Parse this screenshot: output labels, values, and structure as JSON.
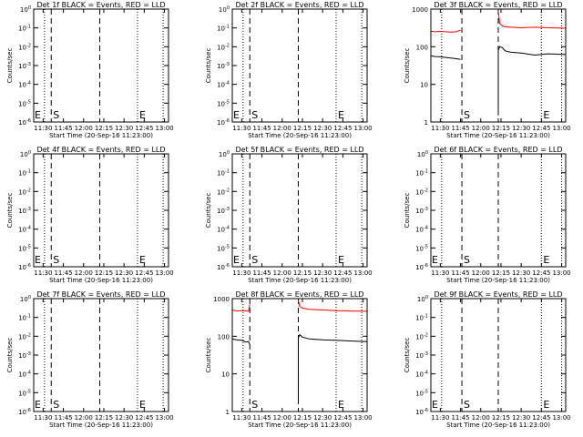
{
  "figure": {
    "background": "#ffffff",
    "colors": {
      "events": "#000000",
      "lld": "#ff0000",
      "axes": "#000000"
    }
  },
  "chart_data": [
    {
      "type": "line",
      "title": "Det 1f BLACK = Events, RED = LLD",
      "xlabel": "Start Time (20-Sep-16 11:23:00)",
      "ylabel": "Counts/sec",
      "xlim": [
        "11:23",
        "13:03"
      ],
      "x_ticks": [
        "11:30",
        "11:45",
        "12:00",
        "12:15",
        "12:30",
        "12:45",
        "13:00"
      ],
      "yscale": "log",
      "ylim": [
        1,
        1e-06
      ],
      "y_ticks": [
        "10^-6",
        "10^-5",
        "10^-4",
        "10^-3",
        "10^-2",
        "10^-1",
        "10^0"
      ],
      "y_ticks_reversed": true,
      "vlines": [
        {
          "x": "11:31",
          "style": "dotted",
          "label": ""
        },
        {
          "x": "11:36",
          "style": "dashed",
          "label": "S"
        },
        {
          "x": "12:12",
          "style": "dashed",
          "label": ""
        },
        {
          "x": "12:40",
          "style": "dotted",
          "label": "E"
        },
        {
          "x": "12:59",
          "style": "dotted",
          "label": ""
        }
      ],
      "corner_label": "E",
      "series": []
    },
    {
      "type": "line",
      "title": "Det 2f BLACK = Events, RED = LLD",
      "xlabel": "Start Time (20-Sep-16 11:23:00)",
      "ylabel": "Counts/sec",
      "xlim": [
        "11:23",
        "13:03"
      ],
      "x_ticks": [
        "11:30",
        "11:45",
        "12:00",
        "12:15",
        "12:30",
        "12:45",
        "13:00"
      ],
      "yscale": "log",
      "ylim": [
        1,
        1e-06
      ],
      "y_ticks": [
        "10^-6",
        "10^-5",
        "10^-4",
        "10^-3",
        "10^-2",
        "10^-1",
        "10^0"
      ],
      "y_ticks_reversed": true,
      "vlines": [
        {
          "x": "11:31",
          "style": "dotted",
          "label": ""
        },
        {
          "x": "11:36",
          "style": "dashed",
          "label": "S"
        },
        {
          "x": "12:12",
          "style": "dashed",
          "label": ""
        },
        {
          "x": "12:40",
          "style": "dotted",
          "label": "E"
        },
        {
          "x": "12:59",
          "style": "dotted",
          "label": ""
        }
      ],
      "corner_label": "E",
      "series": []
    },
    {
      "type": "line",
      "title": "Det 3f BLACK = Events, RED = LLD",
      "xlabel": "Start Time (20-Sep-16 11:23:00)",
      "ylabel": "Counts/sec",
      "xlim": [
        "11:23",
        "13:03"
      ],
      "x_ticks": [
        "11:30",
        "11:45",
        "12:00",
        "12:15",
        "12:30",
        "12:45",
        "13:00"
      ],
      "yscale": "log",
      "ylim": [
        1,
        1000
      ],
      "y_ticks": [
        "1",
        "10",
        "100",
        "1000"
      ],
      "y_ticks_reversed": false,
      "vlines": [
        {
          "x": "11:31",
          "style": "dotted",
          "label": ""
        },
        {
          "x": "11:46",
          "style": "dashed",
          "label": "S"
        },
        {
          "x": "12:13",
          "style": "dashed",
          "label": ""
        },
        {
          "x": "12:45",
          "style": "dotted",
          "label": "E"
        },
        {
          "x": "13:00",
          "style": "dotted",
          "label": ""
        }
      ],
      "corner_label": "",
      "series": [
        {
          "color": "#ff0000",
          "role": "lld",
          "segments": [
            {
              "x": [
                "11:23",
                "11:26",
                "11:30",
                "11:34",
                "11:38",
                "11:42",
                "11:45"
              ],
              "y": [
                260,
                250,
                255,
                250,
                245,
                250,
                280
              ]
            },
            {
              "x": [
                "12:13",
                "12:14",
                "12:16",
                "12:18",
                "12:22",
                "12:30",
                "12:40",
                "12:50",
                "13:03"
              ],
              "y": [
                900,
                420,
                360,
                340,
                330,
                320,
                330,
                320,
                310
              ]
            }
          ]
        },
        {
          "color": "#000000",
          "role": "events",
          "segments": [
            {
              "x": [
                "11:23",
                "11:26",
                "11:30",
                "11:34",
                "11:38",
                "11:42",
                "11:45"
              ],
              "y": [
                58,
                55,
                54,
                52,
                50,
                48,
                46
              ]
            },
            {
              "x": [
                "12:13",
                "12:13",
                "12:14",
                "12:16",
                "12:18",
                "12:22",
                "12:30",
                "12:40",
                "12:50",
                "13:03"
              ],
              "y": [
                1.5,
                80,
                100,
                95,
                78,
                72,
                68,
                60,
                65,
                62
              ]
            }
          ]
        }
      ]
    },
    {
      "type": "line",
      "title": "Det 4f BLACK = Events, RED = LLD",
      "xlabel": "Start Time (20-Sep-16 11:23:00)",
      "ylabel": "Counts/sec",
      "xlim": [
        "11:23",
        "13:03"
      ],
      "x_ticks": [
        "11:30",
        "11:45",
        "12:00",
        "12:15",
        "12:30",
        "12:45",
        "13:00"
      ],
      "yscale": "log",
      "ylim": [
        1,
        1e-06
      ],
      "y_ticks": [
        "10^-6",
        "10^-5",
        "10^-4",
        "10^-3",
        "10^-2",
        "10^-1",
        "10^0"
      ],
      "y_ticks_reversed": true,
      "vlines": [
        {
          "x": "11:31",
          "style": "dotted",
          "label": ""
        },
        {
          "x": "11:36",
          "style": "dashed",
          "label": "S"
        },
        {
          "x": "12:12",
          "style": "dashed",
          "label": ""
        },
        {
          "x": "12:40",
          "style": "dotted",
          "label": "E"
        },
        {
          "x": "12:59",
          "style": "dotted",
          "label": ""
        }
      ],
      "corner_label": "E",
      "series": []
    },
    {
      "type": "line",
      "title": "Det 5f BLACK = Events, RED = LLD",
      "xlabel": "Start Time (20-Sep-16 11:23:00)",
      "ylabel": "Counts/sec",
      "xlim": [
        "11:23",
        "13:03"
      ],
      "x_ticks": [
        "11:30",
        "11:45",
        "12:00",
        "12:15",
        "12:30",
        "12:45",
        "13:00"
      ],
      "yscale": "log",
      "ylim": [
        1,
        1e-06
      ],
      "y_ticks": [
        "10^-6",
        "10^-5",
        "10^-4",
        "10^-3",
        "10^-2",
        "10^-1",
        "10^0"
      ],
      "y_ticks_reversed": true,
      "vlines": [
        {
          "x": "11:31",
          "style": "dotted",
          "label": ""
        },
        {
          "x": "11:36",
          "style": "dashed",
          "label": "S"
        },
        {
          "x": "12:12",
          "style": "dashed",
          "label": ""
        },
        {
          "x": "12:40",
          "style": "dotted",
          "label": "E"
        },
        {
          "x": "12:59",
          "style": "dotted",
          "label": ""
        }
      ],
      "corner_label": "E",
      "series": []
    },
    {
      "type": "line",
      "title": "Det 6f BLACK = Events, RED = LLD",
      "xlabel": "Start Time (20-Sep-16 11:23:00)",
      "ylabel": "Counts/sec",
      "xlim": [
        "11:23",
        "13:03"
      ],
      "x_ticks": [
        "11:30",
        "11:45",
        "12:00",
        "12:15",
        "12:30",
        "12:45",
        "13:00"
      ],
      "yscale": "log",
      "ylim": [
        1,
        1e-06
      ],
      "y_ticks": [
        "10^-6",
        "10^-5",
        "10^-4",
        "10^-3",
        "10^-2",
        "10^-1",
        "10^0"
      ],
      "y_ticks_reversed": true,
      "vlines": [
        {
          "x": "11:31",
          "style": "dotted",
          "label": ""
        },
        {
          "x": "11:46",
          "style": "dashed",
          "label": "S"
        },
        {
          "x": "12:13",
          "style": "dashed",
          "label": ""
        },
        {
          "x": "12:45",
          "style": "dotted",
          "label": "E"
        },
        {
          "x": "13:00",
          "style": "dotted",
          "label": ""
        }
      ],
      "corner_label": "E",
      "series": []
    },
    {
      "type": "line",
      "title": "Det 7f BLACK = Events, RED = LLD",
      "xlabel": "Start Time (20-Sep-16 11:23:00)",
      "ylabel": "Counts/sec",
      "xlim": [
        "11:23",
        "13:03"
      ],
      "x_ticks": [
        "11:30",
        "11:45",
        "12:00",
        "12:15",
        "12:30",
        "12:45",
        "13:00"
      ],
      "yscale": "log",
      "ylim": [
        1,
        1e-06
      ],
      "y_ticks": [
        "10^-6",
        "10^-5",
        "10^-4",
        "10^-3",
        "10^-2",
        "10^-1",
        "10^0"
      ],
      "y_ticks_reversed": true,
      "vlines": [
        {
          "x": "11:31",
          "style": "dotted",
          "label": ""
        },
        {
          "x": "11:36",
          "style": "dashed",
          "label": "S"
        },
        {
          "x": "12:12",
          "style": "dashed",
          "label": ""
        },
        {
          "x": "12:40",
          "style": "dotted",
          "label": "E"
        },
        {
          "x": "12:59",
          "style": "dotted",
          "label": ""
        }
      ],
      "corner_label": "E",
      "series": []
    },
    {
      "type": "line",
      "title": "Det 8f BLACK = Events, RED = LLD",
      "xlabel": "Start Time (20-Sep-16 11:23:00)",
      "ylabel": "Counts/sec",
      "xlim": [
        "11:23",
        "13:03"
      ],
      "x_ticks": [
        "11:30",
        "11:45",
        "12:00",
        "12:15",
        "12:30",
        "12:45",
        "13:00"
      ],
      "yscale": "log",
      "ylim": [
        1,
        1000
      ],
      "y_ticks": [
        "1",
        "10",
        "100",
        "1000"
      ],
      "y_ticks_reversed": false,
      "vlines": [
        {
          "x": "11:31",
          "style": "dotted",
          "label": ""
        },
        {
          "x": "11:36",
          "style": "dashed",
          "label": "S"
        },
        {
          "x": "12:12",
          "style": "dashed",
          "label": ""
        },
        {
          "x": "12:40",
          "style": "dotted",
          "label": "E"
        },
        {
          "x": "12:59",
          "style": "dotted",
          "label": ""
        }
      ],
      "corner_label": "",
      "series": [
        {
          "color": "#ff0000",
          "role": "lld",
          "segments": [
            {
              "x": [
                "11:23",
                "11:26",
                "11:30",
                "11:34",
                "11:35",
                "11:36"
              ],
              "y": [
                500,
                470,
                480,
                470,
                460,
                700
              ]
            },
            {
              "x": [
                "12:12",
                "12:13",
                "12:15",
                "12:20",
                "12:30",
                "12:40",
                "12:50",
                "13:03"
              ],
              "y": [
                900,
                620,
                560,
                520,
                500,
                480,
                470,
                460
              ]
            }
          ]
        },
        {
          "color": "#000000",
          "role": "events",
          "segments": [
            {
              "x": [
                "11:23",
                "11:26",
                "11:30",
                "11:33",
                "11:35",
                "11:36"
              ],
              "y": [
                85,
                80,
                78,
                70,
                72,
                60
              ]
            },
            {
              "x": [
                "12:12",
                "12:12",
                "12:13",
                "12:15",
                "12:20",
                "12:30",
                "12:40",
                "12:50",
                "13:03"
              ],
              "y": [
                2,
                90,
                110,
                95,
                85,
                80,
                78,
                75,
                72
              ]
            }
          ]
        }
      ]
    },
    {
      "type": "line",
      "title": "Det 9f BLACK = Events, RED = LLD",
      "xlabel": "Start Time (20-Sep-16 11:23:00)",
      "ylabel": "Counts/sec",
      "xlim": [
        "11:23",
        "13:03"
      ],
      "x_ticks": [
        "11:30",
        "11:45",
        "12:00",
        "12:15",
        "12:30",
        "12:45",
        "13:00"
      ],
      "yscale": "log",
      "ylim": [
        1,
        1e-06
      ],
      "y_ticks": [
        "10^-6",
        "10^-5",
        "10^-4",
        "10^-3",
        "10^-2",
        "10^-1",
        "10^0"
      ],
      "y_ticks_reversed": true,
      "vlines": [
        {
          "x": "11:31",
          "style": "dotted",
          "label": ""
        },
        {
          "x": "11:46",
          "style": "dashed",
          "label": "S"
        },
        {
          "x": "12:13",
          "style": "dashed",
          "label": ""
        },
        {
          "x": "12:45",
          "style": "dotted",
          "label": "E"
        },
        {
          "x": "13:00",
          "style": "dotted",
          "label": ""
        }
      ],
      "corner_label": "E",
      "series": []
    }
  ]
}
